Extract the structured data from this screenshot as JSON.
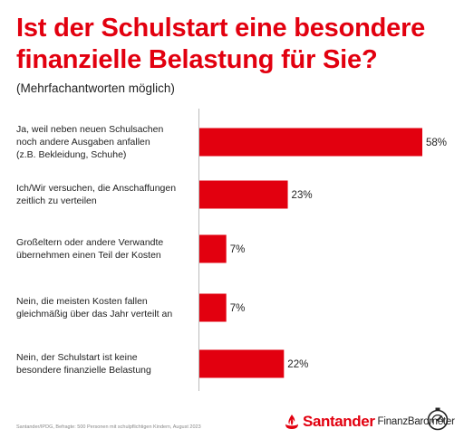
{
  "title": "Ist der Schulstart eine besondere finanzielle Belastung für Sie?",
  "subtitle": "(Mehrfachantworten möglich)",
  "chart_data": {
    "type": "bar",
    "orientation": "horizontal",
    "categories": [
      "Ja, weil neben neuen Schulsachen noch andere Ausgaben anfallen (z.B. Bekleidung, Schuhe)",
      "Ich/Wir versuchen, die Anschaffungen zeitlich zu verteilen",
      "Großeltern oder andere Verwandte übernehmen einen Teil der Kosten",
      "Nein, die meisten Kosten fallen gleichmäßig über das Jahr verteilt an",
      "Nein, der Schulstart ist keine besondere finanzielle Belastung"
    ],
    "category_lines": [
      [
        "Ja, weil neben neuen Schulsachen",
        "noch andere Ausgaben anfallen",
        "(z.B. Bekleidung, Schuhe)"
      ],
      [
        "Ich/Wir versuchen, die Anschaffungen",
        "zeitlich zu verteilen"
      ],
      [
        "Großeltern oder andere Verwandte",
        "übernehmen einen Teil der Kosten"
      ],
      [
        "Nein, die meisten Kosten fallen",
        "gleichmäßig über das Jahr verteilt an"
      ],
      [
        "Nein, der Schulstart ist keine",
        "besondere finanzielle Belastung"
      ]
    ],
    "values": [
      58,
      23,
      7,
      7,
      22
    ],
    "value_labels": [
      "58%",
      "23%",
      "7%",
      "7%",
      "22%"
    ],
    "unit": "%",
    "xlim": [
      0,
      58
    ],
    "grid": false,
    "bar_color": "#e2000f"
  },
  "footer": {
    "source": "Santander/IPDG, Befragte: 500 Personen mit schulpflichtigen Kindern, August 2023",
    "brand_name": "Santander",
    "brand_sub": "FinanzBarometer"
  },
  "colors": {
    "accent": "#e2000f",
    "text": "#222222"
  },
  "icons": {
    "brand_logo": "santander-flame-icon",
    "gauge": "gauge-icon"
  }
}
